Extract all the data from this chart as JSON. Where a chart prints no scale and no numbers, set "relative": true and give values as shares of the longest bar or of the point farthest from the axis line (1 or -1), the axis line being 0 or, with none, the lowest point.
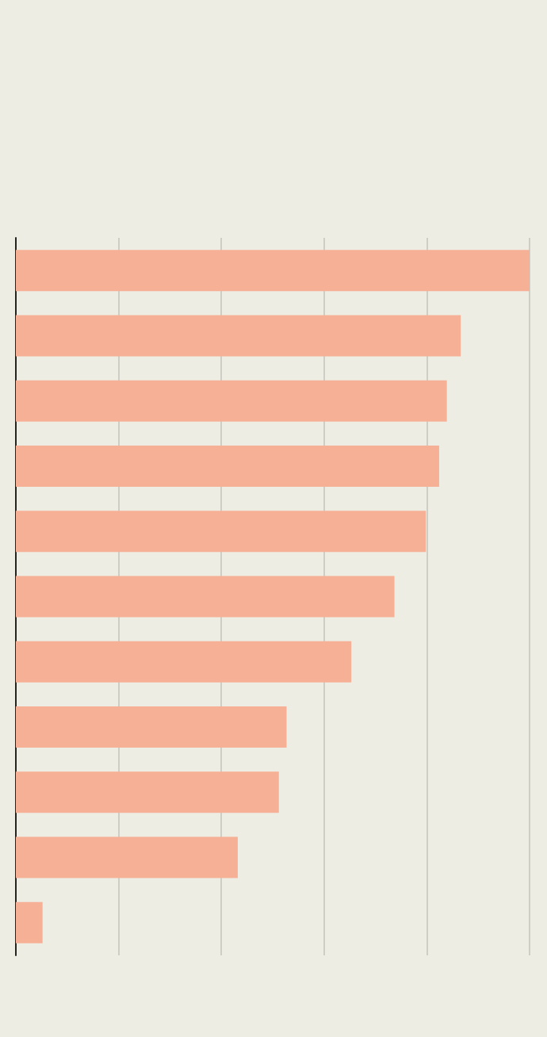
{
  "chart_data": {
    "type": "bar",
    "orientation": "horizontal",
    "relative": true,
    "grid": "x",
    "categories": [
      null,
      null,
      null,
      null,
      null,
      null,
      null,
      null,
      null,
      null,
      null
    ],
    "values": [
      1,
      0.866,
      0.839,
      0.824,
      0.798,
      0.737,
      0.653,
      0.527,
      0.512,
      0.432,
      0.052
    ],
    "color": "#f6b096"
  }
}
